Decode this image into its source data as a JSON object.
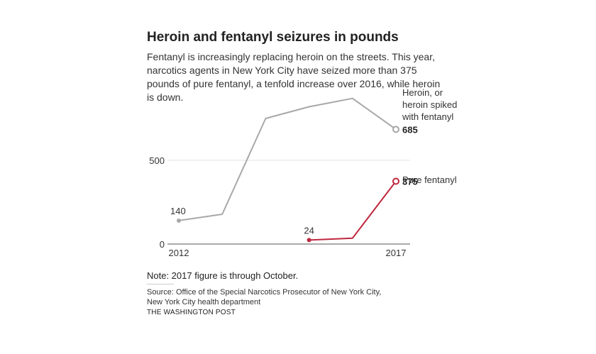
{
  "chart_data": {
    "type": "line",
    "title": "Heroin and fentanyl seizures in pounds",
    "subtitle": "Fentanyl is increasingly replacing heroin on the streets. This year, narcotics agents in New York City have seized more than 375 pounds of pure fentanyl, a tenfold increase over 2016, while heroin is down.",
    "x": [
      2012,
      2013,
      2014,
      2015,
      2016,
      2017
    ],
    "x_ticks": [
      "2012",
      "2017"
    ],
    "y_ticks": [
      0,
      500
    ],
    "ylim": [
      0,
      880
    ],
    "grid": true,
    "series": [
      {
        "name": "Heroin, or heroin spiked with fentanyl",
        "label_lines": [
          "Heroin, or",
          "heroin spiked",
          "with fentanyl"
        ],
        "color": "#a8a8a8",
        "values": [
          140,
          178,
          750,
          820,
          870,
          685
        ],
        "start_label": "140",
        "end_label": "685"
      },
      {
        "name": "Pure fentanyl",
        "label_lines": [
          "Pure fentanyl"
        ],
        "color": "#c0283f",
        "values": [
          null,
          null,
          null,
          24,
          35,
          375
        ],
        "start_label": "24",
        "end_label": "375"
      }
    ]
  },
  "note": "Note: 2017 figure is through October.",
  "source_lines": [
    "Source: Office of the Special Narcotics Prosecutor of New York City,",
    "New York City health department"
  ],
  "credit": "THE WASHINGTON POST"
}
